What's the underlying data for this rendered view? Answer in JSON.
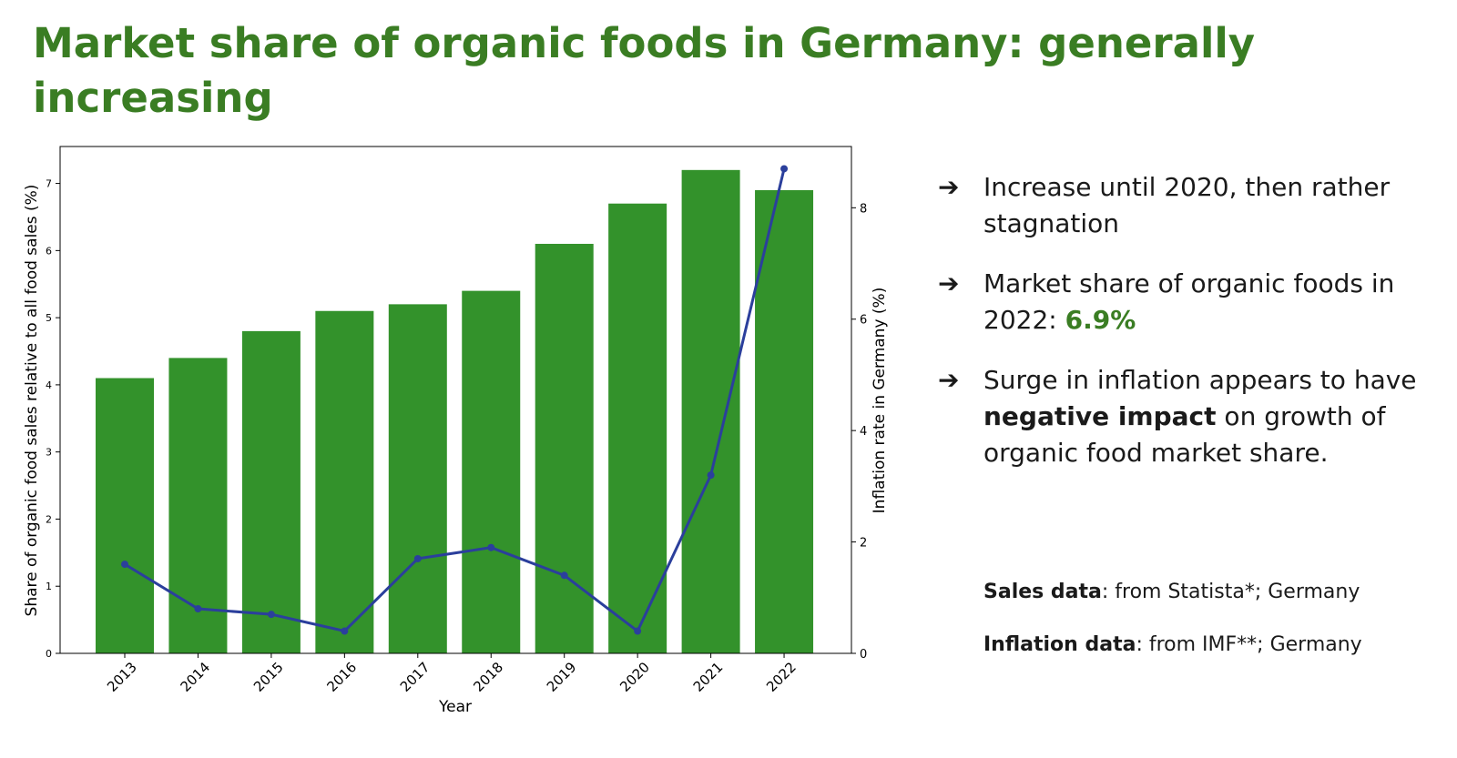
{
  "page": {
    "title": "Market share of organic foods in Germany: generally increasing"
  },
  "bullets": [
    {
      "arrow": "➔",
      "text": "Increase until 2020, then rather stagnation"
    },
    {
      "arrow": "➔",
      "text_before": "Market share of organic foods in 2022: ",
      "highlight": "6.9%"
    },
    {
      "arrow": "➔",
      "text_before": "Surge in inflation appears to have ",
      "bold": "negative impact",
      "text_after": " on growth of organic food market share."
    }
  ],
  "sources": {
    "sales_label": "Sales data",
    "sales_text": ": from Statista*; Germany",
    "inflation_label": "Inflation data",
    "inflation_text": ": from IMF**; Germany"
  },
  "colors": {
    "title": "#3a7d23",
    "bar": "#33922b",
    "line": "#2b3f9c"
  },
  "chart_data": {
    "type": "bar",
    "categories": [
      "2013",
      "2014",
      "2015",
      "2016",
      "2017",
      "2018",
      "2019",
      "2020",
      "2021",
      "2022"
    ],
    "series": [
      {
        "type": "bar",
        "axis": "left",
        "values": [
          4.1,
          4.4,
          4.8,
          5.1,
          5.2,
          5.4,
          6.1,
          6.7,
          7.2,
          6.9
        ]
      },
      {
        "type": "line",
        "axis": "right",
        "values": [
          1.6,
          0.8,
          0.7,
          0.4,
          1.7,
          1.9,
          1.4,
          0.4,
          3.2,
          8.7
        ]
      }
    ],
    "xlabel": "Year",
    "ylabel": "Share of organic food sales relative to all food sales (%)",
    "y2label": "Inflation rate in Germany (%)",
    "ylim": [
      0,
      7.55
    ],
    "y2lim": [
      0,
      9.1
    ],
    "yticks": [
      0,
      1,
      2,
      3,
      4,
      5,
      6,
      7
    ],
    "y2ticks": [
      0,
      2,
      4,
      6,
      8
    ],
    "grid": false,
    "legend": "none"
  }
}
